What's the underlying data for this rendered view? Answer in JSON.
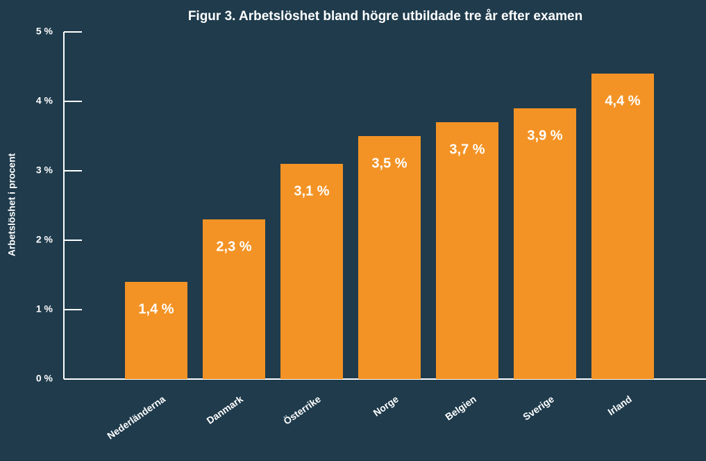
{
  "chart_data": {
    "type": "bar",
    "title": "Figur 3. Arbetslöshet bland högre utbildade tre år efter examen",
    "y_label": "Arbetslöshet i procent",
    "categories": [
      "Nederländerna",
      "Danmark",
      "Österrike",
      "Norge",
      "Belgien",
      "Sverige",
      "Irland"
    ],
    "values": [
      1.4,
      2.3,
      3.1,
      3.5,
      3.7,
      3.9,
      4.4
    ],
    "value_labels": [
      "1,4 %",
      "2,3 %",
      "3,1 %",
      "3,5 %",
      "3,7 %",
      "3,9 %",
      "4,4 %"
    ],
    "color": "#f39325",
    "ylim": [
      0,
      5
    ],
    "yticks": [
      {
        "value": 0,
        "label": "0 %"
      },
      {
        "value": 1,
        "label": "1 %"
      },
      {
        "value": 2,
        "label": "2 %"
      },
      {
        "value": 3,
        "label": "3 %"
      },
      {
        "value": 4,
        "label": "4 %"
      },
      {
        "value": 5,
        "label": "5 %"
      }
    ],
    "grid": false
  }
}
